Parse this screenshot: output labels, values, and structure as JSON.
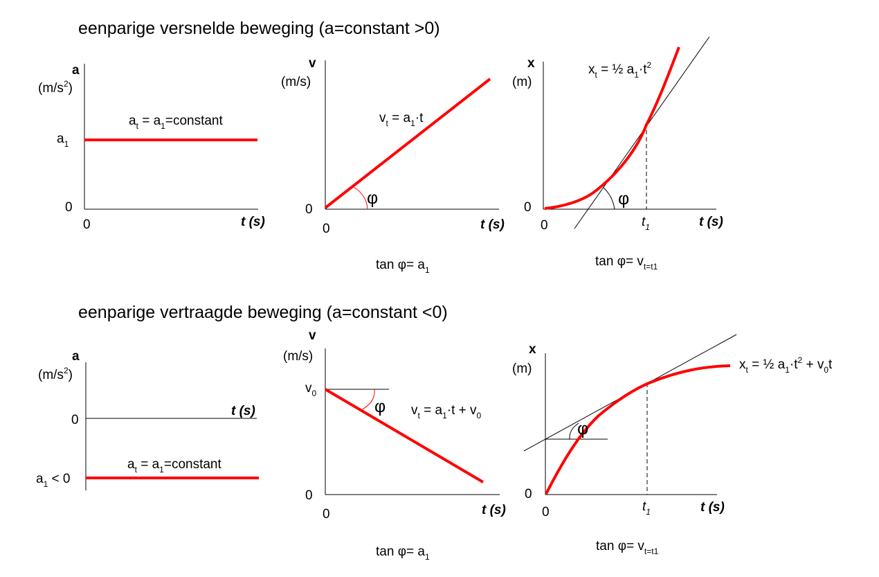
{
  "colors": {
    "curve": "#ff0000",
    "axis": "#000000",
    "tangent": "#000000"
  },
  "sections": [
    {
      "title": "eenparige versnelde beweging (a=constant >0)",
      "charts": [
        {
          "y_label": "a",
          "y_unit": "(m/s",
          "y_unit_sup": "2",
          "y_unit_close": ")",
          "origin_y": "0",
          "origin_x": "0",
          "x_label": "t (s)",
          "level_a": "a",
          "level_sub": "1",
          "eq": {
            "p1": "a",
            "s1": "t",
            "p2": " = a",
            "s2": "1",
            "p3": "=constant"
          }
        },
        {
          "y_label": "v",
          "y_unit": "(m/s)",
          "origin_y": "0",
          "origin_x": "0",
          "x_label": "t (s)",
          "eq": {
            "p1": "v",
            "s1": "t",
            "p2": " = a",
            "s2": "1",
            "p3": "·t"
          },
          "angle": "φ",
          "caption": {
            "p1": "tan φ= a",
            "s1": "1"
          }
        },
        {
          "y_label": "x",
          "y_unit": "(m)",
          "origin_y": "0",
          "origin_x": "0",
          "x_label": "t (s)",
          "t1": {
            "p": "t",
            "s": "1"
          },
          "eq": {
            "p1": "x",
            "s1": "t",
            "p2": " = ½ a",
            "s2": "1",
            "p3": "·t",
            "sup": "2"
          },
          "angle": "φ",
          "caption": {
            "p1": "tan φ= v",
            "s1": "t=t1"
          }
        }
      ]
    },
    {
      "title": "eenparige vertraagde beweging (a=constant <0)",
      "charts": [
        {
          "y_label": "a",
          "y_unit": "(m/s",
          "y_unit_sup": "2",
          "y_unit_close": ")",
          "origin_y": "0",
          "x_label": "t (s)",
          "level_a": "a",
          "level_sub": "1",
          "level_rest": " < 0",
          "eq": {
            "p1": "a",
            "s1": "t",
            "p2": " = a",
            "s2": "1",
            "p3": "=constant"
          }
        },
        {
          "y_label": "v",
          "y_unit": "(m/s)",
          "origin_y": "0",
          "origin_x": "0",
          "x_label": "t (s)",
          "v0": {
            "p": "v",
            "s": "0"
          },
          "eq": {
            "p1": "v",
            "s1": "t",
            "p2": " = a",
            "s2": "1",
            "p3": "·t + v",
            "s3": "0"
          },
          "angle": "φ",
          "caption": {
            "p1": "tan φ= a",
            "s1": "1"
          }
        },
        {
          "y_label": "x",
          "y_unit": "(m)",
          "origin_y": "0",
          "origin_x": "0",
          "x_label": "t (s)",
          "t1": {
            "p": "t",
            "s": "1"
          },
          "eq": {
            "p1": "x",
            "s1": "t",
            "p2": " = ½ a",
            "s2": "1",
            "p3": "·t",
            "sup": "2",
            "p4": " + v",
            "s4": "0",
            "p5": "t"
          },
          "angle": "φ",
          "caption": {
            "p1": "tan φ= v",
            "s1": "t=t1"
          }
        }
      ]
    }
  ]
}
